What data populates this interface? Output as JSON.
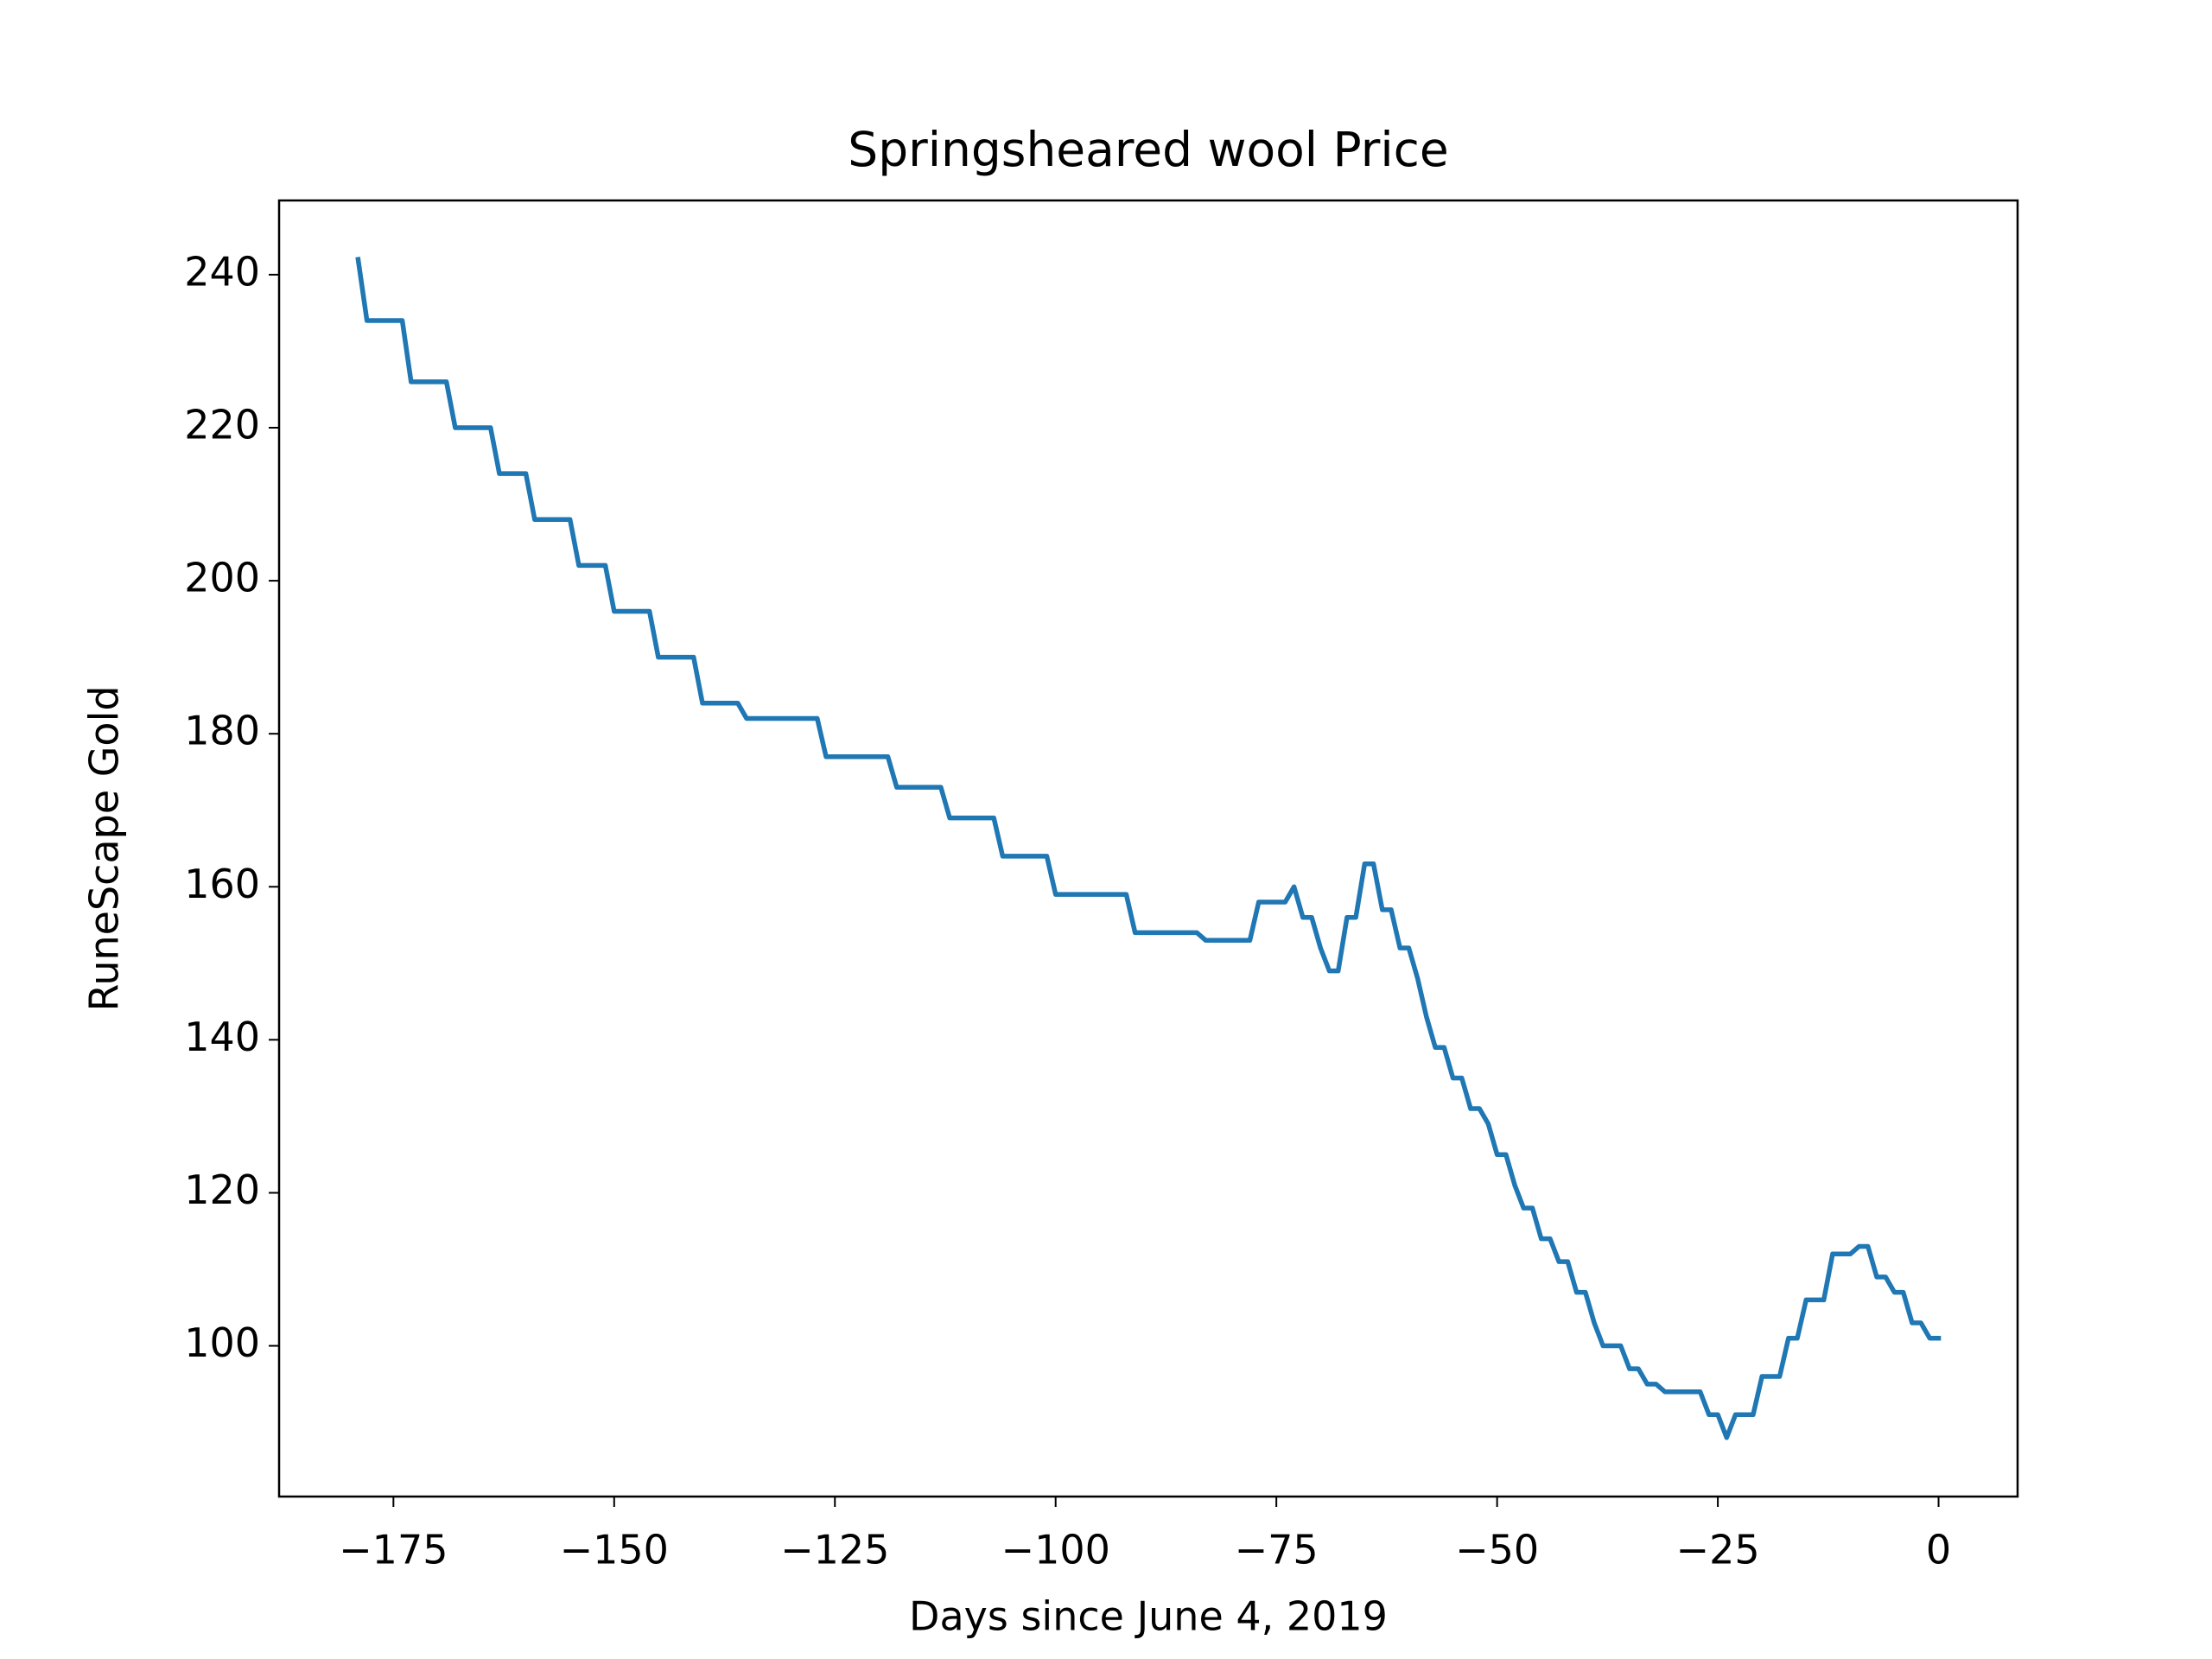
{
  "chart_data": {
    "type": "line",
    "title": "Springsheared wool Price",
    "xlabel": "Days since June 4, 2019",
    "ylabel": "RuneScape Gold",
    "x": [
      -179,
      -178,
      -177,
      -176,
      -175,
      -174,
      -173,
      -172,
      -171,
      -170,
      -169,
      -168,
      -167,
      -166,
      -165,
      -164,
      -163,
      -162,
      -161,
      -160,
      -159,
      -158,
      -157,
      -156,
      -155,
      -154,
      -153,
      -152,
      -151,
      -150,
      -149,
      -148,
      -147,
      -146,
      -145,
      -144,
      -143,
      -142,
      -141,
      -140,
      -139,
      -138,
      -137,
      -136,
      -135,
      -134,
      -133,
      -132,
      -131,
      -130,
      -129,
      -128,
      -127,
      -126,
      -125,
      -124,
      -123,
      -122,
      -121,
      -120,
      -119,
      -118,
      -117,
      -116,
      -115,
      -114,
      -113,
      -112,
      -111,
      -110,
      -109,
      -108,
      -107,
      -106,
      -105,
      -104,
      -103,
      -102,
      -101,
      -100,
      -99,
      -98,
      -97,
      -96,
      -95,
      -94,
      -93,
      -92,
      -91,
      -90,
      -89,
      -88,
      -87,
      -86,
      -85,
      -84,
      -83,
      -82,
      -81,
      -80,
      -79,
      -78,
      -77,
      -76,
      -75,
      -74,
      -73,
      -72,
      -71,
      -70,
      -69,
      -68,
      -67,
      -66,
      -65,
      -64,
      -63,
      -62,
      -61,
      -60,
      -59,
      -58,
      -57,
      -56,
      -55,
      -54,
      -53,
      -52,
      -51,
      -50,
      -49,
      -48,
      -47,
      -46,
      -45,
      -44,
      -43,
      -42,
      -41,
      -40,
      -39,
      -38,
      -37,
      -36,
      -35,
      -34,
      -33,
      -32,
      -31,
      -30,
      -29,
      -28,
      -27,
      -26,
      -25,
      -24,
      -23,
      -22,
      -21,
      -20,
      -19,
      -18,
      -17,
      -16,
      -15,
      -14,
      -13,
      -12,
      -11,
      -10,
      -9,
      -8,
      -7,
      -6,
      -5,
      -4,
      -3,
      -2,
      -1,
      0
    ],
    "series": [
      {
        "name": "Springsheared wool",
        "color": "#1f77b4",
        "values": [
          242,
          234,
          234,
          234,
          234,
          234,
          226,
          226,
          226,
          226,
          226,
          220,
          220,
          220,
          220,
          220,
          214,
          214,
          214,
          214,
          208,
          208,
          208,
          208,
          208,
          202,
          202,
          202,
          202,
          196,
          196,
          196,
          196,
          196,
          190,
          190,
          190,
          190,
          190,
          184,
          184,
          184,
          184,
          184,
          182,
          182,
          182,
          182,
          182,
          182,
          182,
          182,
          182,
          177,
          177,
          177,
          177,
          177,
          177,
          177,
          177,
          173,
          173,
          173,
          173,
          173,
          173,
          169,
          169,
          169,
          169,
          169,
          169,
          164,
          164,
          164,
          164,
          164,
          164,
          159,
          159,
          159,
          159,
          159,
          159,
          159,
          159,
          159,
          154,
          154,
          154,
          154,
          154,
          154,
          154,
          154,
          153,
          153,
          153,
          153,
          153,
          153,
          158,
          158,
          158,
          158,
          160,
          156,
          156,
          152,
          149,
          149,
          156,
          156,
          163,
          163,
          157,
          157,
          152,
          152,
          148,
          143,
          139,
          139,
          135,
          135,
          131,
          131,
          129,
          125,
          125,
          121,
          118,
          118,
          114,
          114,
          111,
          111,
          107,
          107,
          103,
          100,
          100,
          100,
          97,
          97,
          95,
          95,
          94,
          94,
          94,
          94,
          94,
          91,
          91,
          88,
          91,
          91,
          91,
          96,
          96,
          96,
          101,
          101,
          106,
          106,
          106,
          112,
          112,
          112,
          113,
          113,
          109,
          109,
          107,
          107,
          103,
          103,
          101,
          101
        ]
      }
    ],
    "xlim": [
      -187.95,
      8.95
    ],
    "ylim": [
      80.3,
      249.7
    ],
    "xticks": [
      {
        "value": -175,
        "label": "−175"
      },
      {
        "value": -150,
        "label": "−150"
      },
      {
        "value": -125,
        "label": "−125"
      },
      {
        "value": -100,
        "label": "−100"
      },
      {
        "value": -75,
        "label": "−75"
      },
      {
        "value": -50,
        "label": "−50"
      },
      {
        "value": -25,
        "label": "−25"
      },
      0
    ],
    "yticks": [
      100,
      120,
      140,
      160,
      180,
      200,
      220,
      240
    ],
    "grid": false
  }
}
